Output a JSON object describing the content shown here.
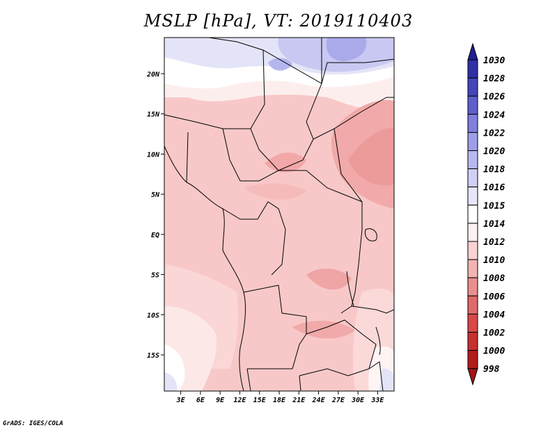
{
  "chart_data": {
    "type": "heatmap",
    "title": "MSLP [hPa], VT: 2019110403",
    "variable": "MSLP",
    "units": "hPa",
    "valid_time": "2019110403",
    "x_ticks": [
      "3E",
      "6E",
      "9E",
      "12E",
      "15E",
      "18E",
      "21E",
      "24E",
      "27E",
      "30E",
      "33E"
    ],
    "y_ticks": [
      "20N",
      "15N",
      "10N",
      "5N",
      "EQ",
      "5S",
      "10S",
      "15S"
    ],
    "x_tick_values": [
      3,
      6,
      9,
      12,
      15,
      18,
      21,
      24,
      27,
      30,
      33
    ],
    "y_tick_values": [
      20,
      15,
      10,
      5,
      0,
      -5,
      -10,
      -15
    ],
    "xlim": [
      0.5,
      35.5
    ],
    "ylim": [
      -19.5,
      24.5
    ],
    "colorbar": {
      "levels": [
        "998",
        "1000",
        "1002",
        "1004",
        "1006",
        "1008",
        "1010",
        "1012",
        "1014",
        "1015",
        "1016",
        "1018",
        "1020",
        "1022",
        "1024",
        "1026",
        "1028",
        "1030"
      ],
      "colors": [
        "#a11616",
        "#b41c1c",
        "#c73030",
        "#d84848",
        "#e06a6a",
        "#ea8e8e",
        "#f3b3b3",
        "#fad2d2",
        "#fdf0f0",
        "#ffffff",
        "#e6e6fa",
        "#d0d0f6",
        "#b8b8f0",
        "#9d9de8",
        "#7f7fdd",
        "#5f5fcc",
        "#4444bb",
        "#2f2fa8",
        "#1f1f94"
      ]
    },
    "regions": [
      {
        "lat": 22,
        "lon": 28,
        "mslp": 1017
      },
      {
        "lat": 22,
        "lon": 5,
        "mslp": 1015
      },
      {
        "lat": 18,
        "lon": 12,
        "mslp": 1013
      },
      {
        "lat": 12,
        "lon": 33,
        "mslp": 1009
      },
      {
        "lat": 10,
        "lon": 20,
        "mslp": 1010
      },
      {
        "lat": 0,
        "lon": 20,
        "mslp": 1011
      },
      {
        "lat": -5,
        "lon": 25,
        "mslp": 1010
      },
      {
        "lat": -11,
        "lon": 22,
        "mslp": 1010
      },
      {
        "lat": -15,
        "lon": 4,
        "mslp": 1012
      },
      {
        "lat": -18,
        "lon": 2,
        "mslp": 1014
      },
      {
        "lat": -18,
        "lon": 34,
        "mslp": 1015
      }
    ]
  },
  "credit": "GrADS: IGES/COLA"
}
